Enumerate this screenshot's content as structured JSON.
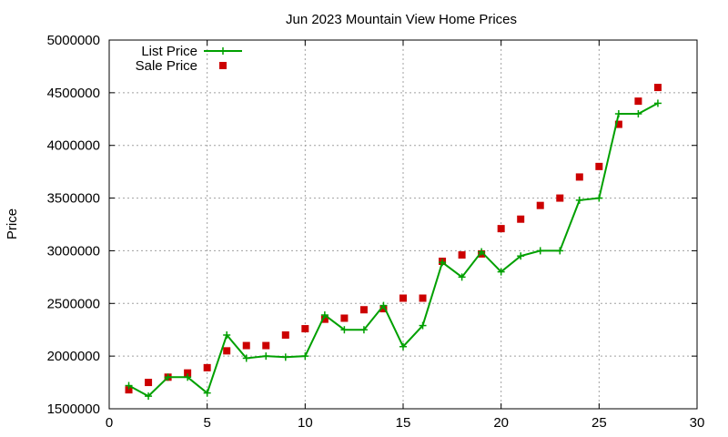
{
  "chart_data": {
    "type": "line",
    "title": "Jun 2023 Mountain View Home Prices",
    "xlabel": "",
    "ylabel": "Price",
    "xlim": [
      0,
      30
    ],
    "ylim": [
      1500000,
      5000000
    ],
    "xticks": [
      0,
      5,
      10,
      15,
      20,
      25,
      30
    ],
    "yticks": [
      1500000,
      2000000,
      2500000,
      3000000,
      3500000,
      4000000,
      4500000,
      5000000
    ],
    "grid": true,
    "legend_position": "top-left",
    "x": [
      1,
      2,
      3,
      4,
      5,
      6,
      7,
      8,
      9,
      10,
      11,
      12,
      13,
      14,
      15,
      16,
      17,
      18,
      19,
      20,
      21,
      22,
      23,
      24,
      25,
      26,
      27,
      28
    ],
    "series": [
      {
        "name": "List Price",
        "style": "line+cross",
        "color": "#00a000",
        "values": [
          1720000,
          1620000,
          1800000,
          1800000,
          1650000,
          2200000,
          1980000,
          2000000,
          1990000,
          2000000,
          2390000,
          2250000,
          2250000,
          2480000,
          2090000,
          2290000,
          2890000,
          2750000,
          2990000,
          2800000,
          2950000,
          3000000,
          3000000,
          3480000,
          3500000,
          4300000,
          4300000,
          4400000
        ]
      },
      {
        "name": "Sale Price",
        "style": "square-points",
        "color": "#cc0000",
        "values": [
          1680000,
          1750000,
          1800000,
          1840000,
          1890000,
          2050000,
          2100000,
          2100000,
          2200000,
          2260000,
          2350000,
          2360000,
          2440000,
          2450000,
          2550000,
          2550000,
          2900000,
          2960000,
          2970000,
          3210000,
          3300000,
          3430000,
          3500000,
          3700000,
          3800000,
          4200000,
          4420000,
          4550000
        ]
      }
    ]
  }
}
